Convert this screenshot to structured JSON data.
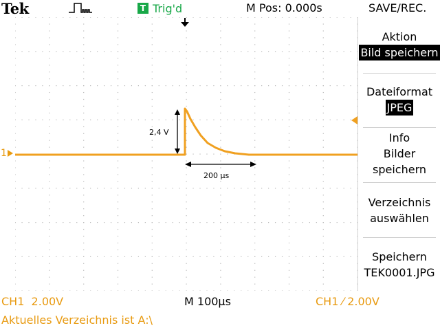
{
  "header": {
    "brand": "Tek",
    "trigger_badge": "T",
    "trigger_status": "Trig'd",
    "m_pos": "M Pos: 0.000s",
    "menu_title": "SAVE/REC."
  },
  "side_menu": [
    {
      "title": "Aktion",
      "value": "Bild speichern"
    },
    {
      "title": "Dateiformat",
      "value": "JPEG"
    },
    {
      "lines": [
        "Info",
        "Bilder",
        "speichern"
      ]
    },
    {
      "lines": [
        "Verzeichnis",
        "auswählen"
      ]
    },
    {
      "lines": [
        "Speichern",
        "TEK0001.JPG"
      ]
    }
  ],
  "annotations": {
    "amplitude": "2,4 V",
    "duration": "200 µs"
  },
  "channel_marker": "1",
  "footer": {
    "ch_scale": "CH1  2.00V",
    "timebase": "M 100µs",
    "trigger": "CH1 ⁄ 2.00V",
    "status": "Aktuelles Verzeichnis ist A:\\"
  },
  "colors": {
    "trace": "#f0a020",
    "accent_orange": "#e89a10",
    "trigger_green": "#18a848"
  }
}
